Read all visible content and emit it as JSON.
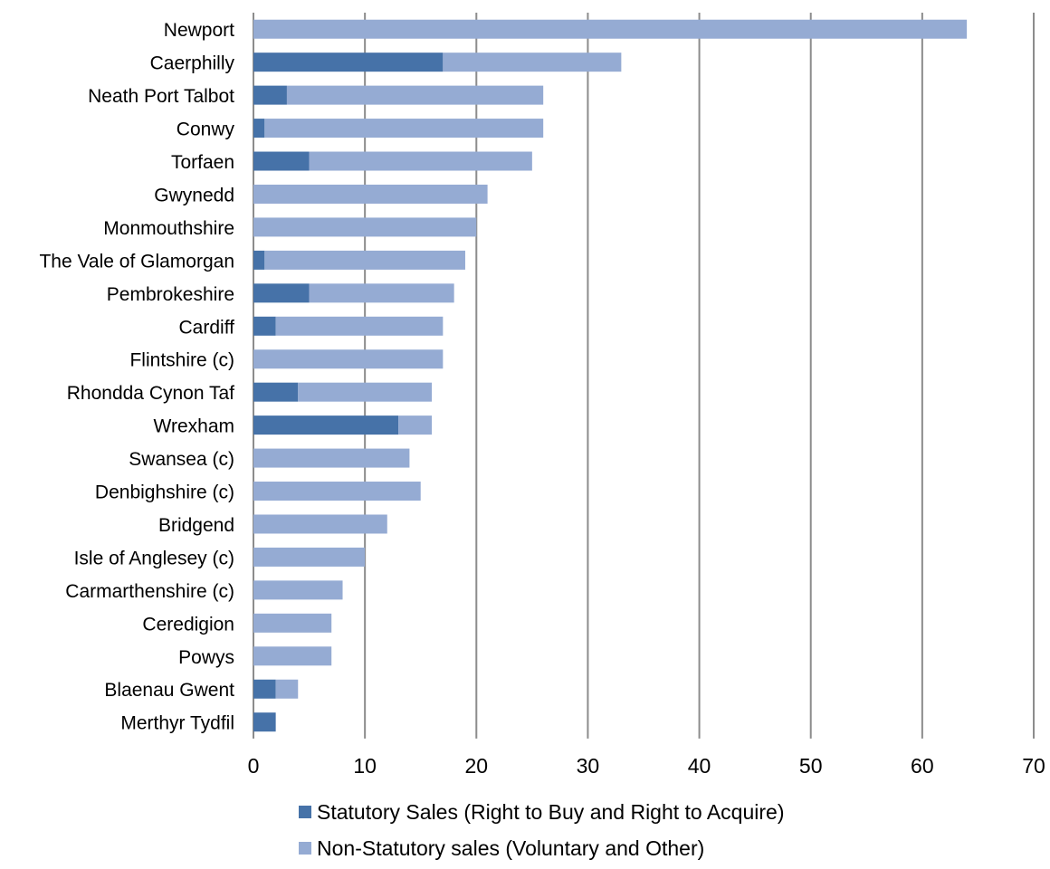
{
  "chart_data": {
    "type": "bar",
    "orientation": "horizontal",
    "stacked": true,
    "title": "",
    "xlabel": "",
    "ylabel": "",
    "xlim": [
      0,
      70
    ],
    "x_ticks": [
      "0",
      "10",
      "20",
      "30",
      "40",
      "50",
      "60",
      "70"
    ],
    "grid": "vertical",
    "legend_position": "bottom",
    "categories": [
      "Newport",
      "Caerphilly",
      "Neath Port Talbot",
      "Conwy",
      "Torfaen",
      "Gwynedd",
      "Monmouthshire",
      "The Vale of Glamorgan",
      "Pembrokeshire",
      "Cardiff",
      "Flintshire (c)",
      "Rhondda Cynon Taf",
      "Wrexham",
      "Swansea (c)",
      "Denbighshire (c)",
      "Bridgend",
      "Isle of Anglesey (c)",
      "Carmarthenshire (c)",
      "Ceredigion",
      "Powys",
      "Blaenau Gwent",
      "Merthyr Tydfil"
    ],
    "series": [
      {
        "name": "Statutory Sales (Right to Buy and Right to Acquire)",
        "color": "#4672a8",
        "values": [
          0,
          17,
          3,
          1,
          5,
          0,
          0,
          1,
          5,
          2,
          0,
          4,
          13,
          0,
          0,
          0,
          0,
          0,
          0,
          0,
          2,
          2
        ]
      },
      {
        "name": "Non-Statutory sales (Voluntary and Other)",
        "color": "#95abd3",
        "values": [
          64,
          16,
          23,
          25,
          20,
          21,
          20,
          18,
          13,
          15,
          17,
          12,
          3,
          14,
          15,
          12,
          10,
          8,
          7,
          7,
          2,
          0
        ]
      }
    ]
  }
}
